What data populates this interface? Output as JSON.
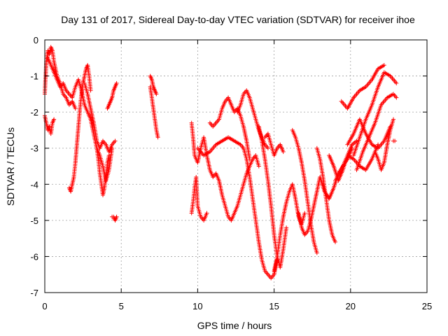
{
  "chart_data": {
    "type": "scatter",
    "title": "Day 131 of 2017, Sidereal Day-to-day VTEC variation (SDTVAR) for receiver ihoe",
    "xlabel": "GPS time / hours",
    "ylabel": "SDTVAR / TECUs",
    "xlim": [
      0,
      25
    ],
    "ylim": [
      -7,
      0
    ],
    "xticks": [
      "0",
      "5",
      "10",
      "15",
      "20",
      "25"
    ],
    "yticks": [
      "0",
      "-1",
      "-2",
      "-3",
      "-4",
      "-5",
      "-6",
      "-7"
    ],
    "grid": true,
    "marker": "+",
    "color": "#ff0000",
    "series": [
      {
        "segments": [
          {
            "x": [
              0.0,
              0.1,
              0.2,
              0.3,
              0.4,
              0.5,
              0.6,
              0.8,
              1.0,
              1.2,
              1.4,
              1.6,
              1.8,
              2.0
            ],
            "y": [
              -1.5,
              -0.6,
              -0.3,
              -0.4,
              -0.2,
              -0.3,
              -0.6,
              -1.0,
              -1.2,
              -1.5,
              -1.6,
              -1.8,
              -1.7,
              -1.9
            ]
          },
          {
            "x": [
              0.0,
              0.1,
              0.2,
              0.3,
              0.4,
              0.5,
              0.6
            ],
            "y": [
              -2.1,
              -2.3,
              -2.5,
              -2.4,
              -2.6,
              -2.3,
              -2.2
            ]
          },
          {
            "x": [
              0.2,
              0.4,
              0.6,
              0.8,
              1.0,
              1.2,
              1.4,
              1.6,
              1.8,
              2.0,
              2.2,
              2.4,
              2.6,
              2.8,
              3.0,
              3.2,
              3.4,
              3.6,
              3.8,
              4.0,
              4.2,
              4.4
            ],
            "y": [
              -0.5,
              -0.7,
              -0.9,
              -1.1,
              -1.3,
              -1.2,
              -1.4,
              -1.5,
              -1.6,
              -1.3,
              -1.1,
              -1.4,
              -1.8,
              -2.0,
              -2.2,
              -2.6,
              -3.0,
              -3.2,
              -3.5,
              -3.9,
              -3.6,
              -3.0
            ]
          },
          {
            "x": [
              1.6,
              1.7,
              1.8,
              1.9,
              2.0,
              2.1,
              2.2,
              2.3,
              2.4,
              2.5,
              2.6,
              2.7,
              2.8,
              2.9,
              3.0
            ],
            "y": [
              -4.1,
              -4.2,
              -4.0,
              -3.8,
              -3.4,
              -2.9,
              -2.4,
              -1.9,
              -1.5,
              -1.2,
              -1.0,
              -0.8,
              -0.7,
              -1.0,
              -1.4
            ]
          },
          {
            "x": [
              2.6,
              2.8,
              3.0,
              3.2,
              3.4,
              3.6,
              3.8,
              4.0,
              4.2,
              4.4,
              4.6
            ],
            "y": [
              -1.2,
              -1.5,
              -1.9,
              -2.3,
              -2.8,
              -3.0,
              -2.8,
              -2.9,
              -3.1,
              -2.9,
              -2.8
            ]
          },
          {
            "x": [
              3.4,
              3.5,
              3.6,
              3.7,
              3.8,
              3.9,
              4.0,
              4.1,
              4.2
            ],
            "y": [
              -3.0,
              -3.3,
              -3.7,
              -4.0,
              -4.3,
              -4.1,
              -3.8,
              -3.4,
              -3.2
            ]
          },
          {
            "x": [
              4.1,
              4.2,
              4.3,
              4.4,
              4.5,
              4.6,
              4.7
            ],
            "y": [
              -1.9,
              -1.8,
              -1.7,
              -1.6,
              -1.4,
              -1.3,
              -1.2
            ]
          },
          {
            "x": [
              4.4,
              4.5,
              4.6,
              4.7
            ],
            "y": [
              -4.9,
              -4.9,
              -5.0,
              -4.9
            ]
          },
          {
            "x": [
              6.9,
              7.0,
              7.1,
              7.2,
              7.3,
              7.4
            ],
            "y": [
              -1.3,
              -1.6,
              -1.9,
              -2.2,
              -2.5,
              -2.7
            ]
          },
          {
            "x": [
              6.9,
              7.0,
              7.1,
              7.2,
              7.3
            ],
            "y": [
              -1.0,
              -1.1,
              -1.3,
              -1.4,
              -1.5
            ]
          }
        ]
      },
      {
        "segments": [
          {
            "x": [
              9.6,
              9.7,
              9.8,
              10.0,
              10.2,
              10.4,
              10.6,
              10.8,
              11.0,
              11.2,
              11.4,
              11.6,
              11.8,
              12.0,
              12.2,
              12.4
            ],
            "y": [
              -2.3,
              -2.7,
              -3.2,
              -3.4,
              -3.0,
              -2.7,
              -3.2,
              -3.6,
              -3.8,
              -3.7,
              -3.9,
              -4.3,
              -4.6,
              -4.9,
              -5.0,
              -4.8
            ]
          },
          {
            "x": [
              9.6,
              9.7,
              9.8,
              9.9,
              10.0,
              10.2,
              10.4,
              10.6
            ],
            "y": [
              -4.8,
              -4.5,
              -4.1,
              -3.8,
              -4.6,
              -4.9,
              -5.0,
              -4.8
            ]
          },
          {
            "x": [
              10.8,
              11.0,
              11.2,
              11.4,
              11.6,
              11.8,
              12.0,
              12.2,
              12.4,
              12.6,
              12.8,
              13.0,
              13.2,
              13.4
            ],
            "y": [
              -2.3,
              -2.4,
              -2.3,
              -2.2,
              -1.9,
              -1.7,
              -1.6,
              -1.8,
              -2.0,
              -1.9,
              -2.1,
              -2.4,
              -2.8,
              -3.3
            ]
          },
          {
            "x": [
              10.0,
              10.4,
              10.8,
              11.2,
              11.6,
              12.0,
              12.4,
              12.8,
              13.0
            ],
            "y": [
              -3.0,
              -3.2,
              -3.1,
              -2.9,
              -2.8,
              -2.7,
              -2.8,
              -2.9,
              -3.0
            ]
          },
          {
            "x": [
              12.6,
              12.8,
              13.0,
              13.2,
              13.4,
              13.6,
              13.8,
              14.0,
              14.2,
              14.4,
              14.6
            ],
            "y": [
              -2.0,
              -1.8,
              -1.5,
              -1.4,
              -1.6,
              -1.9,
              -2.2,
              -2.5,
              -2.7,
              -2.9,
              -3.0
            ]
          },
          {
            "x": [
              13.0,
              13.2,
              13.4,
              13.6,
              13.8,
              14.0,
              14.2,
              14.4,
              14.6,
              14.8,
              15.0,
              15.2
            ],
            "y": [
              -3.0,
              -3.3,
              -3.8,
              -4.4,
              -5.0,
              -5.6,
              -6.1,
              -6.4,
              -6.5,
              -6.6,
              -6.5,
              -6.1
            ]
          },
          {
            "x": [
              12.4,
              12.6,
              12.8,
              13.0,
              13.2,
              13.4,
              13.6,
              13.8,
              14.0
            ],
            "y": [
              -4.8,
              -4.6,
              -4.3,
              -4.0,
              -3.7,
              -3.5,
              -3.3,
              -3.2,
              -3.5
            ]
          },
          {
            "x": [
              14.0,
              14.2,
              14.4,
              14.6,
              14.8,
              15.0,
              15.2,
              15.4,
              15.6,
              15.8
            ],
            "y": [
              -2.4,
              -2.8,
              -3.3,
              -3.9,
              -4.6,
              -5.4,
              -6.0,
              -6.3,
              -5.8,
              -5.2
            ]
          },
          {
            "x": [
              14.4,
              14.6,
              14.8,
              15.0,
              15.2,
              15.4,
              15.6
            ],
            "y": [
              -2.7,
              -2.6,
              -2.9,
              -3.2,
              -3.0,
              -2.9,
              -3.1
            ]
          },
          {
            "x": [
              15.0,
              15.2,
              15.4,
              15.6,
              15.8,
              16.0,
              16.2,
              16.4,
              16.6,
              16.8,
              17.0
            ],
            "y": [
              -6.4,
              -6.0,
              -5.4,
              -4.9,
              -4.5,
              -4.2,
              -4.0,
              -4.4,
              -4.9,
              -5.1,
              -4.8
            ]
          },
          {
            "x": [
              16.2,
              16.4,
              16.6,
              16.8,
              17.0,
              17.2,
              17.4,
              17.6,
              17.8
            ],
            "y": [
              -2.5,
              -2.7,
              -3.0,
              -3.4,
              -3.9,
              -4.5,
              -5.1,
              -5.6,
              -5.9
            ]
          },
          {
            "x": [
              16.6,
              16.8,
              17.0,
              17.2,
              17.4,
              17.6,
              17.8,
              18.0
            ],
            "y": [
              -4.8,
              -5.2,
              -5.4,
              -5.3,
              -5.0,
              -4.6,
              -4.2,
              -3.8
            ]
          },
          {
            "x": [
              17.8,
              18.0,
              18.2,
              18.4,
              18.6,
              18.8,
              19.0
            ],
            "y": [
              -3.0,
              -3.3,
              -3.8,
              -4.4,
              -5.0,
              -5.4,
              -5.6
            ]
          },
          {
            "x": [
              18.0,
              18.3,
              18.6,
              18.9,
              19.2,
              19.5,
              19.8,
              20.1
            ],
            "y": [
              -3.8,
              -4.2,
              -4.4,
              -4.1,
              -3.7,
              -3.5,
              -3.3,
              -3.0
            ]
          },
          {
            "x": [
              18.6,
              18.9,
              19.2,
              19.5,
              19.8,
              20.1,
              20.4
            ],
            "y": [
              -3.2,
              -3.5,
              -3.9,
              -3.6,
              -3.2,
              -2.9,
              -2.8
            ]
          },
          {
            "x": [
              19.0,
              19.4,
              19.8,
              20.2,
              20.6,
              21.0,
              21.4,
              21.8
            ],
            "y": [
              -3.9,
              -3.6,
              -3.2,
              -3.3,
              -3.5,
              -3.6,
              -3.3,
              -2.9
            ]
          },
          {
            "x": [
              19.8,
              20.2,
              20.6,
              21.0,
              21.4,
              21.8,
              22.2,
              22.6
            ],
            "y": [
              -2.9,
              -2.6,
              -2.2,
              -2.6,
              -2.9,
              -3.0,
              -2.8,
              -2.4
            ]
          },
          {
            "x": [
              20.2,
              20.6,
              21.0,
              21.4,
              21.8,
              22.2,
              22.6,
              23.0
            ],
            "y": [
              -3.2,
              -2.7,
              -2.2,
              -1.8,
              -1.3,
              -0.9,
              -1.0,
              -1.2
            ]
          },
          {
            "x": [
              20.4,
              20.8,
              21.2,
              21.6,
              22.0,
              22.4,
              22.8,
              23.0
            ],
            "y": [
              -3.6,
              -3.1,
              -2.7,
              -2.3,
              -1.8,
              -1.6,
              -1.5,
              -1.6
            ]
          },
          {
            "x": [
              19.4,
              19.8,
              20.2,
              20.6,
              21.0,
              21.4,
              21.8,
              22.2
            ],
            "y": [
              -1.7,
              -1.9,
              -1.6,
              -1.4,
              -1.3,
              -1.1,
              -0.8,
              -0.7
            ]
          },
          {
            "x": [
              21.6,
              21.8,
              22.0,
              22.2,
              22.4,
              22.6,
              22.8
            ],
            "y": [
              -3.1,
              -3.3,
              -3.6,
              -3.4,
              -2.9,
              -2.5,
              -2.2
            ]
          },
          {
            "x": [
              22.8,
              22.9
            ],
            "y": [
              -2.8,
              -2.8
            ]
          }
        ]
      }
    ]
  }
}
